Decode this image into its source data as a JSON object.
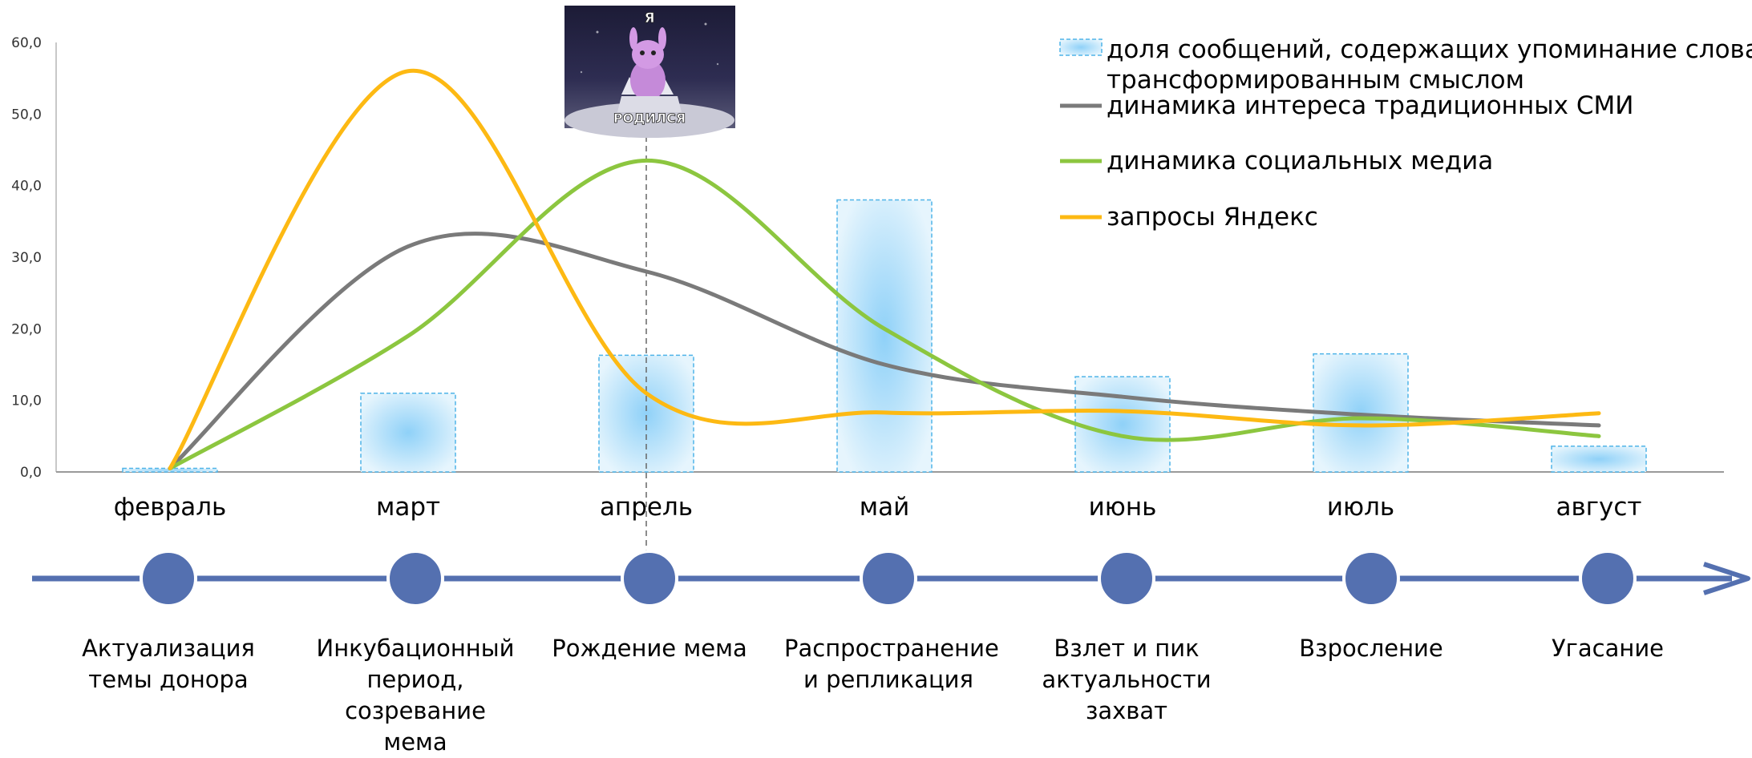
{
  "chart_data": {
    "type": "bar",
    "categories": [
      "февраль",
      "март",
      "апрель",
      "май",
      "июнь",
      "июль",
      "август"
    ],
    "y_ticks": [
      "0,0",
      "10,0",
      "20,0",
      "30,0",
      "40,0",
      "50,0",
      "60,0"
    ],
    "ylim": [
      0,
      60
    ],
    "grid": false,
    "legend_position": "top-right",
    "bars": {
      "name": "доля сообщений, содержащих упоминание слова с трансформированным смыслом",
      "values": [
        0.5,
        11,
        16.3,
        38,
        13.3,
        16.5,
        3.6
      ]
    },
    "series": [
      {
        "name": "динамика интереса традиционных СМИ",
        "type": "line",
        "color": "#7a7a7a",
        "values": [
          0.5,
          31.5,
          28,
          15,
          10.5,
          8,
          6.5
        ]
      },
      {
        "name": "динамика социальных медиа",
        "type": "line",
        "color": "#8cc63f",
        "values": [
          0.5,
          19,
          43.5,
          20,
          5,
          7.5,
          5
        ]
      },
      {
        "name": "запросы Яндекс",
        "type": "line",
        "color": "#fdb913",
        "values": [
          0.5,
          56,
          11,
          8.3,
          8.5,
          6.5,
          8.2
        ]
      }
    ],
    "legend": [
      {
        "label_lines": [
          "доля сообщений, содержащих упоминание слова с",
          "трансформированным смыслом"
        ],
        "kind": "bar"
      },
      {
        "label_lines": [
          "динамика интереса традиционных СМИ"
        ],
        "kind": "line",
        "color": "#7a7a7a"
      },
      {
        "label_lines": [
          "динамика социальных медиа"
        ],
        "kind": "line",
        "color": "#8cc63f"
      },
      {
        "label_lines": [
          "запросы Яндекс"
        ],
        "kind": "line",
        "color": "#fdb913"
      }
    ],
    "marker": {
      "category": "апрель",
      "style": "dashed-vertical"
    },
    "meme_image": {
      "top_text": "Я",
      "bottom_text": "РОДИЛСЯ"
    }
  },
  "timeline": {
    "color": "#5470b0",
    "stages": [
      "Актуализация\nтемы донора",
      "Инкубационный\nпериод,\nсозревание мема",
      "Рождение мема",
      "Распространение\nи репликация",
      "Взлет и пик\nактуальности\nзахват",
      "Взросление",
      "Угасание"
    ]
  }
}
